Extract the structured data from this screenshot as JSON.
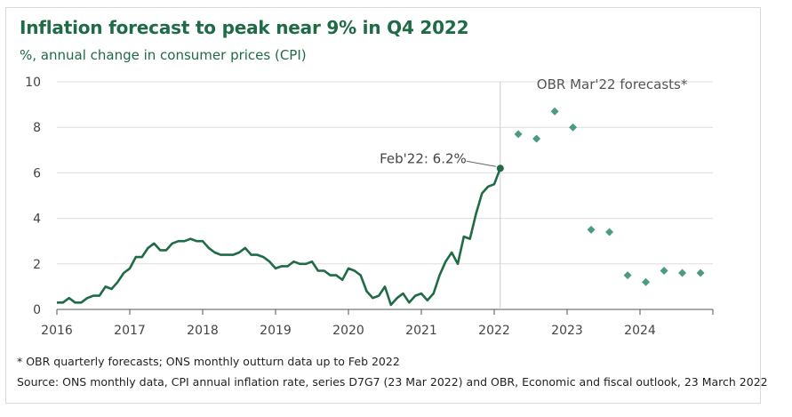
{
  "title": "Inflation forecast to peak near 9% in Q4 2022",
  "subtitle": "%, annual change in consumer prices (CPI)",
  "footnote": "* OBR quarterly forecasts; ONS monthly outturn data up to Feb 2022",
  "source": "Source: ONS monthly data, CPI annual inflation rate, series D7G7 (23 Mar 2022) and OBR, Economic and fiscal outlook, 23 March 2022",
  "colors": {
    "brand": "#1f6b45",
    "line": "#1f6b45",
    "forecast": "#4a9b82",
    "grid": "#dddddd",
    "axis": "#555555"
  },
  "chart_data": {
    "type": "line",
    "ylim": [
      0,
      10
    ],
    "yticks": [
      "0",
      "2",
      "4",
      "6",
      "8",
      "10"
    ],
    "xlim": [
      2016,
      2025
    ],
    "xticks": [
      {
        "x": 2016,
        "label": "2016"
      },
      {
        "x": 2017,
        "label": "2017"
      },
      {
        "x": 2018,
        "label": "2018"
      },
      {
        "x": 2019,
        "label": "2019"
      },
      {
        "x": 2020,
        "label": "2020"
      },
      {
        "x": 2021,
        "label": "2021"
      },
      {
        "x": 2022,
        "label": "2022"
      },
      {
        "x": 2023,
        "label": "2023"
      },
      {
        "x": 2024,
        "label": "2024"
      }
    ],
    "grid": true,
    "divider_x": 2022.083,
    "divider_label": "OBR Mar'22 forecasts*",
    "annotation": {
      "text": "Feb'22: 6.2%",
      "x": 2022.083,
      "y": 6.2
    },
    "series": [
      {
        "type": "line",
        "start": "2016-01",
        "values": [
          0.3,
          0.3,
          0.5,
          0.3,
          0.3,
          0.5,
          0.6,
          0.6,
          1.0,
          0.9,
          1.2,
          1.6,
          1.8,
          2.3,
          2.3,
          2.7,
          2.9,
          2.6,
          2.6,
          2.9,
          3.0,
          3.0,
          3.1,
          3.0,
          3.0,
          2.7,
          2.5,
          2.4,
          2.4,
          2.4,
          2.5,
          2.7,
          2.4,
          2.4,
          2.3,
          2.1,
          1.8,
          1.9,
          1.9,
          2.1,
          2.0,
          2.0,
          2.1,
          1.7,
          1.7,
          1.5,
          1.5,
          1.3,
          1.8,
          1.7,
          1.5,
          0.8,
          0.5,
          0.6,
          1.0,
          0.2,
          0.5,
          0.7,
          0.3,
          0.6,
          0.7,
          0.4,
          0.7,
          1.5,
          2.1,
          2.5,
          2.0,
          3.2,
          3.1,
          4.2,
          5.1,
          5.4,
          5.5,
          6.2
        ]
      },
      {
        "type": "scatter",
        "name": "OBR quarterly forecasts",
        "points": [
          {
            "x": 2022.33,
            "y": 7.7
          },
          {
            "x": 2022.58,
            "y": 7.5
          },
          {
            "x": 2022.83,
            "y": 8.7
          },
          {
            "x": 2023.08,
            "y": 8.0
          },
          {
            "x": 2023.33,
            "y": 3.5
          },
          {
            "x": 2023.58,
            "y": 3.4
          },
          {
            "x": 2023.83,
            "y": 1.5
          },
          {
            "x": 2024.08,
            "y": 1.2
          },
          {
            "x": 2024.33,
            "y": 1.7
          },
          {
            "x": 2024.58,
            "y": 1.6
          },
          {
            "x": 2024.83,
            "y": 1.6
          }
        ]
      }
    ]
  }
}
